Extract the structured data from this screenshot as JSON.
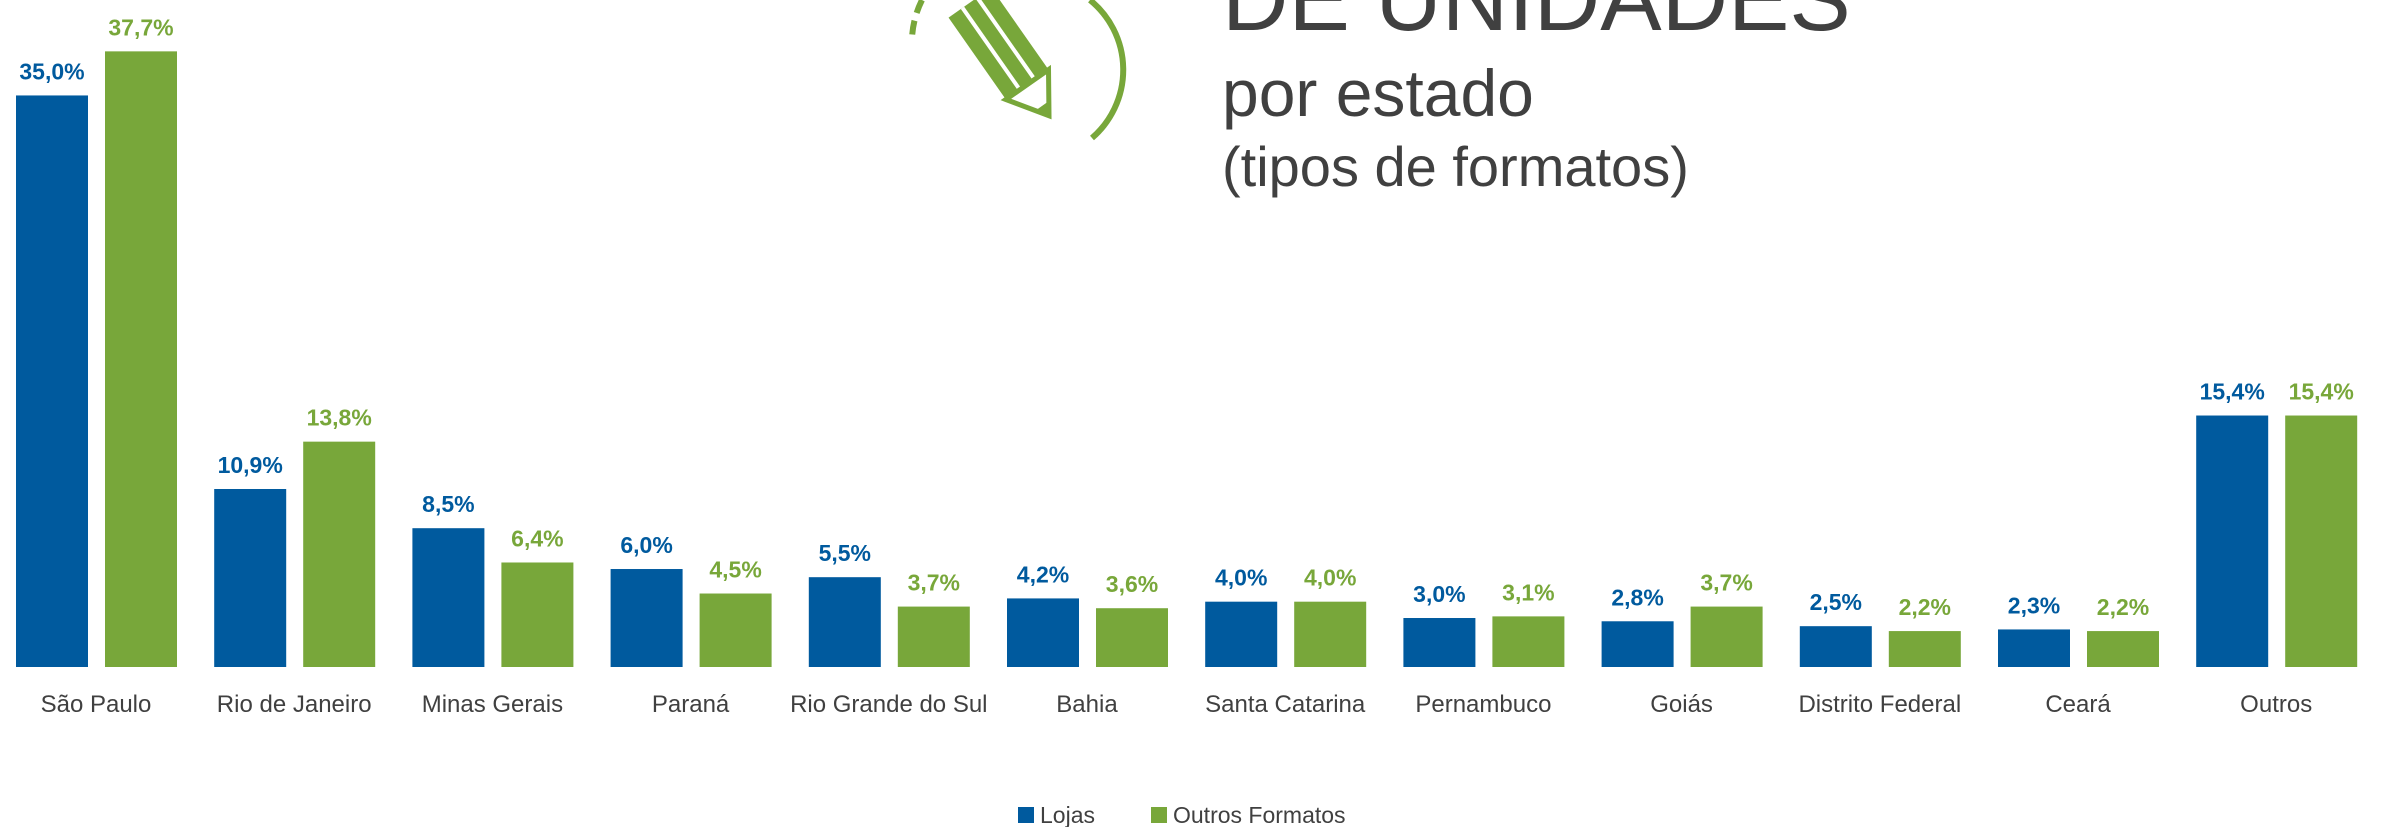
{
  "chart_data": {
    "type": "bar",
    "title": "DE UNIDADES",
    "subtitle": [
      "por estado",
      "(tipos de formatos)"
    ],
    "categories": [
      "São Paulo",
      "Rio de Janeiro",
      "Minas Gerais",
      "Paraná",
      "Rio Grande do Sul",
      "Bahia",
      "Santa Catarina",
      "Pernambuco",
      "Goiás",
      "Distrito Federal",
      "Ceará",
      "Outros"
    ],
    "series": [
      {
        "name": "Lojas",
        "color": "#005a9e",
        "values": [
          35.0,
          10.9,
          8.5,
          6.0,
          5.5,
          4.2,
          4.0,
          3.0,
          2.8,
          2.5,
          2.3,
          15.4
        ],
        "value_labels": [
          "35,0%",
          "10,9%",
          "8,5%",
          "6,0%",
          "5,5%",
          "4,2%",
          "4,0%",
          "3,0%",
          "2,8%",
          "2,5%",
          "2,3%",
          "15,4%"
        ]
      },
      {
        "name": "Outros Formatos",
        "color": "#78a73a",
        "values": [
          37.7,
          13.8,
          6.4,
          4.5,
          3.7,
          3.6,
          4.0,
          3.1,
          3.7,
          2.2,
          2.2,
          15.4
        ],
        "value_labels": [
          "37,7%",
          "13,8%",
          "6,4%",
          "4,5%",
          "3,7%",
          "3,6%",
          "4,0%",
          "3,1%",
          "3,7%",
          "2,2%",
          "2,2%",
          "15,4%"
        ]
      }
    ],
    "legend": "bottom"
  }
}
